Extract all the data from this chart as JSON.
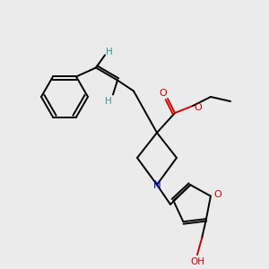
{
  "bg_color": "#ebebeb",
  "atom_colors": {
    "C": "#000000",
    "N": "#0000cc",
    "O": "#cc0000",
    "H": "#3d8f8f"
  },
  "bond_color": "#000000",
  "figsize": [
    3.0,
    3.0
  ],
  "dpi": 100
}
